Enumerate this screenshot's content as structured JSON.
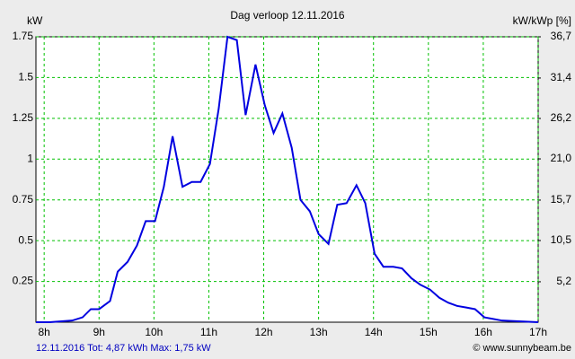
{
  "chart_data": {
    "type": "line",
    "title": "Dag  verloop 12.11.2016",
    "y_label": "kW",
    "y2_label": "kW/kWp [%]",
    "footer_left": "12.11.2016 Tot: 4,87 kWh Max: 1,75 kW",
    "footer_right": "© www.sunnybeam.be",
    "x": [
      7.85,
      8.1,
      8.51,
      8.7,
      8.85,
      9.0,
      9.2,
      9.34,
      9.52,
      9.69,
      9.85,
      10.02,
      10.18,
      10.34,
      10.52,
      10.69,
      10.85,
      11.02,
      11.18,
      11.34,
      11.51,
      11.67,
      11.85,
      12.02,
      12.18,
      12.34,
      12.51,
      12.67,
      12.84,
      13.0,
      13.18,
      13.34,
      13.51,
      13.69,
      13.85,
      14.02,
      14.18,
      14.36,
      14.52,
      14.69,
      14.85,
      15.03,
      15.2,
      15.36,
      15.52,
      15.69,
      15.85,
      16.02,
      16.18,
      16.34,
      17.0
    ],
    "series": [
      {
        "color": "#0000e0",
        "values": [
          0,
          0,
          0.01,
          0.03,
          0.08,
          0.08,
          0.13,
          0.31,
          0.37,
          0.47,
          0.62,
          0.62,
          0.83,
          1.14,
          0.83,
          0.86,
          0.86,
          0.97,
          1.31,
          1.75,
          1.73,
          1.27,
          1.58,
          1.33,
          1.16,
          1.28,
          1.07,
          0.75,
          0.68,
          0.54,
          0.48,
          0.72,
          0.73,
          0.84,
          0.73,
          0.42,
          0.34,
          0.34,
          0.33,
          0.27,
          0.23,
          0.2,
          0.15,
          0.12,
          0.1,
          0.09,
          0.08,
          0.03,
          0.02,
          0.01,
          0
        ]
      }
    ],
    "xlim": [
      7.85,
      17
    ],
    "xticks": [
      {
        "value": 8,
        "label": "8h"
      },
      {
        "value": 9,
        "label": "9h"
      },
      {
        "value": 10,
        "label": "10h"
      },
      {
        "value": 11,
        "label": "11h"
      },
      {
        "value": 12,
        "label": "12h"
      },
      {
        "value": 13,
        "label": "13h"
      },
      {
        "value": 14,
        "label": "14h"
      },
      {
        "value": 15,
        "label": "15h"
      },
      {
        "value": 16,
        "label": "16h"
      },
      {
        "value": 17,
        "label": "17h"
      }
    ],
    "ylim": [
      0,
      1.75
    ],
    "yticks": [
      0.25,
      0.5,
      0.75,
      1,
      1.25,
      1.5,
      1.75
    ],
    "y2lim": [
      0,
      36.7
    ],
    "y2ticks": [
      {
        "value": 5.2,
        "label": "5,2"
      },
      {
        "value": 10.5,
        "label": "10,5"
      },
      {
        "value": 15.7,
        "label": "15,7"
      },
      {
        "value": 21.0,
        "label": "21,0"
      },
      {
        "value": 26.2,
        "label": "26,2"
      },
      {
        "value": 31.4,
        "label": "31,4"
      },
      {
        "value": 36.7,
        "label": "36,7"
      }
    ],
    "grid": true,
    "grid_color": "#00c000",
    "background": "#ececec"
  }
}
